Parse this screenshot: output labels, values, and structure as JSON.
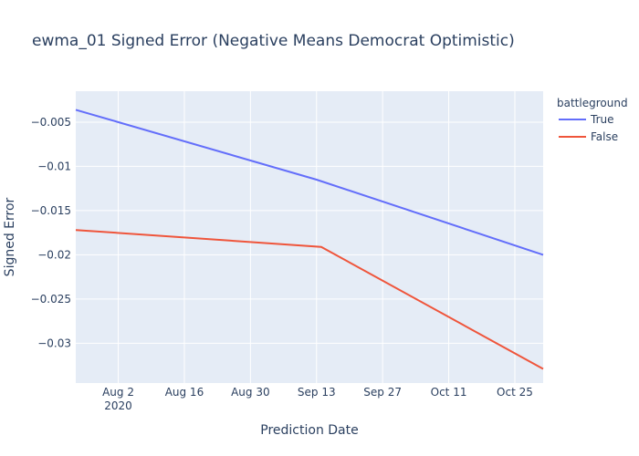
{
  "chart_data": {
    "type": "line",
    "title": "ewma_01 Signed Error (Negative Means Democrat Optimistic)",
    "xlabel": "Prediction Date",
    "ylabel": "Signed Error",
    "xlim": [
      "2020-07-24",
      "2020-10-31"
    ],
    "ylim": [
      -0.0345,
      -0.0015
    ],
    "x_ticks": [
      {
        "date": "2020-08-02",
        "label": "Aug 2",
        "sublabel": "2020"
      },
      {
        "date": "2020-08-16",
        "label": "Aug 16"
      },
      {
        "date": "2020-08-30",
        "label": "Aug 30"
      },
      {
        "date": "2020-09-13",
        "label": "Sep 13"
      },
      {
        "date": "2020-09-27",
        "label": "Sep 27"
      },
      {
        "date": "2020-10-11",
        "label": "Oct 11"
      },
      {
        "date": "2020-10-25",
        "label": "Oct 25"
      }
    ],
    "y_ticks": [
      {
        "value": -0.005,
        "label": "−0.005"
      },
      {
        "value": -0.01,
        "label": "−0.01"
      },
      {
        "value": -0.015,
        "label": "−0.015"
      },
      {
        "value": -0.02,
        "label": "−0.02"
      },
      {
        "value": -0.025,
        "label": "−0.025"
      },
      {
        "value": -0.03,
        "label": "−0.03"
      }
    ],
    "legend": {
      "title": "battleground",
      "position": "top-right"
    },
    "grid": true,
    "series": [
      {
        "name": "True",
        "color": "#636efa",
        "points": [
          {
            "x": "2020-07-24",
            "y": -0.0036
          },
          {
            "x": "2020-09-13",
            "y": -0.0115
          },
          {
            "x": "2020-10-31",
            "y": -0.02
          }
        ]
      },
      {
        "name": "False",
        "color": "#ef553b",
        "points": [
          {
            "x": "2020-07-24",
            "y": -0.0172
          },
          {
            "x": "2020-09-14",
            "y": -0.0191
          },
          {
            "x": "2020-10-31",
            "y": -0.0329
          }
        ]
      }
    ]
  }
}
